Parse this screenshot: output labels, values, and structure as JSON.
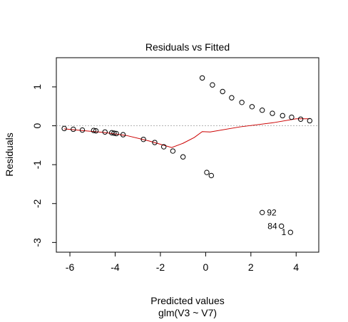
{
  "chart_data": {
    "type": "scatter",
    "title": "Residuals vs Fitted",
    "xlabel": "Predicted values",
    "xlabel_sub": "glm(V3 ~ V7)",
    "ylabel": "Residuals",
    "xlim": [
      -6.6,
      5.0
    ],
    "ylim": [
      -3.25,
      1.75
    ],
    "xticks": [
      "-6",
      "-4",
      "-2",
      "0",
      "2",
      "4"
    ],
    "yticks": [
      "-3",
      "-2",
      "-1",
      "0",
      "1"
    ],
    "grid": false,
    "reference_line": 0,
    "series": [
      {
        "points": [
          {
            "x": -6.25,
            "y": -0.07
          },
          {
            "x": -5.85,
            "y": -0.09
          },
          {
            "x": -5.45,
            "y": -0.11
          },
          {
            "x": -4.95,
            "y": -0.12
          },
          {
            "x": -4.85,
            "y": -0.13
          },
          {
            "x": -4.45,
            "y": -0.16
          },
          {
            "x": -4.15,
            "y": -0.18
          },
          {
            "x": -4.05,
            "y": -0.19
          },
          {
            "x": -3.95,
            "y": -0.2
          },
          {
            "x": -3.65,
            "y": -0.23
          },
          {
            "x": -2.75,
            "y": -0.35
          },
          {
            "x": -2.25,
            "y": -0.43
          },
          {
            "x": -1.85,
            "y": -0.54
          },
          {
            "x": -1.45,
            "y": -0.65
          },
          {
            "x": -1.0,
            "y": -0.8
          },
          {
            "x": -0.15,
            "y": 1.23
          },
          {
            "x": 0.3,
            "y": 1.05
          },
          {
            "x": 0.75,
            "y": 0.88
          },
          {
            "x": 1.15,
            "y": 0.72
          },
          {
            "x": 1.6,
            "y": 0.6
          },
          {
            "x": 2.05,
            "y": 0.49
          },
          {
            "x": 2.5,
            "y": 0.4
          },
          {
            "x": 2.95,
            "y": 0.32
          },
          {
            "x": 3.4,
            "y": 0.26
          },
          {
            "x": 3.8,
            "y": 0.22
          },
          {
            "x": 4.2,
            "y": 0.17
          },
          {
            "x": 4.6,
            "y": 0.13
          },
          {
            "x": 0.05,
            "y": -1.2
          },
          {
            "x": 0.25,
            "y": -1.28
          },
          {
            "x": 2.5,
            "y": -2.23,
            "label": "92"
          },
          {
            "x": 3.35,
            "y": -2.58,
            "label": "84"
          },
          {
            "x": 3.75,
            "y": -2.74,
            "label": "1"
          }
        ]
      }
    ],
    "smooth_line": {
      "color": "#cc0000",
      "points": [
        {
          "x": -6.25,
          "y": -0.08
        },
        {
          "x": -5.5,
          "y": -0.12
        },
        {
          "x": -4.5,
          "y": -0.17
        },
        {
          "x": -3.5,
          "y": -0.25
        },
        {
          "x": -2.5,
          "y": -0.39
        },
        {
          "x": -1.5,
          "y": -0.56
        },
        {
          "x": -1.0,
          "y": -0.45
        },
        {
          "x": -0.5,
          "y": -0.3
        },
        {
          "x": -0.15,
          "y": -0.15
        },
        {
          "x": 0.2,
          "y": -0.16
        },
        {
          "x": 1.5,
          "y": -0.03
        },
        {
          "x": 3.0,
          "y": 0.08
        },
        {
          "x": 4.0,
          "y": 0.18
        },
        {
          "x": 4.6,
          "y": 0.18
        }
      ]
    }
  }
}
